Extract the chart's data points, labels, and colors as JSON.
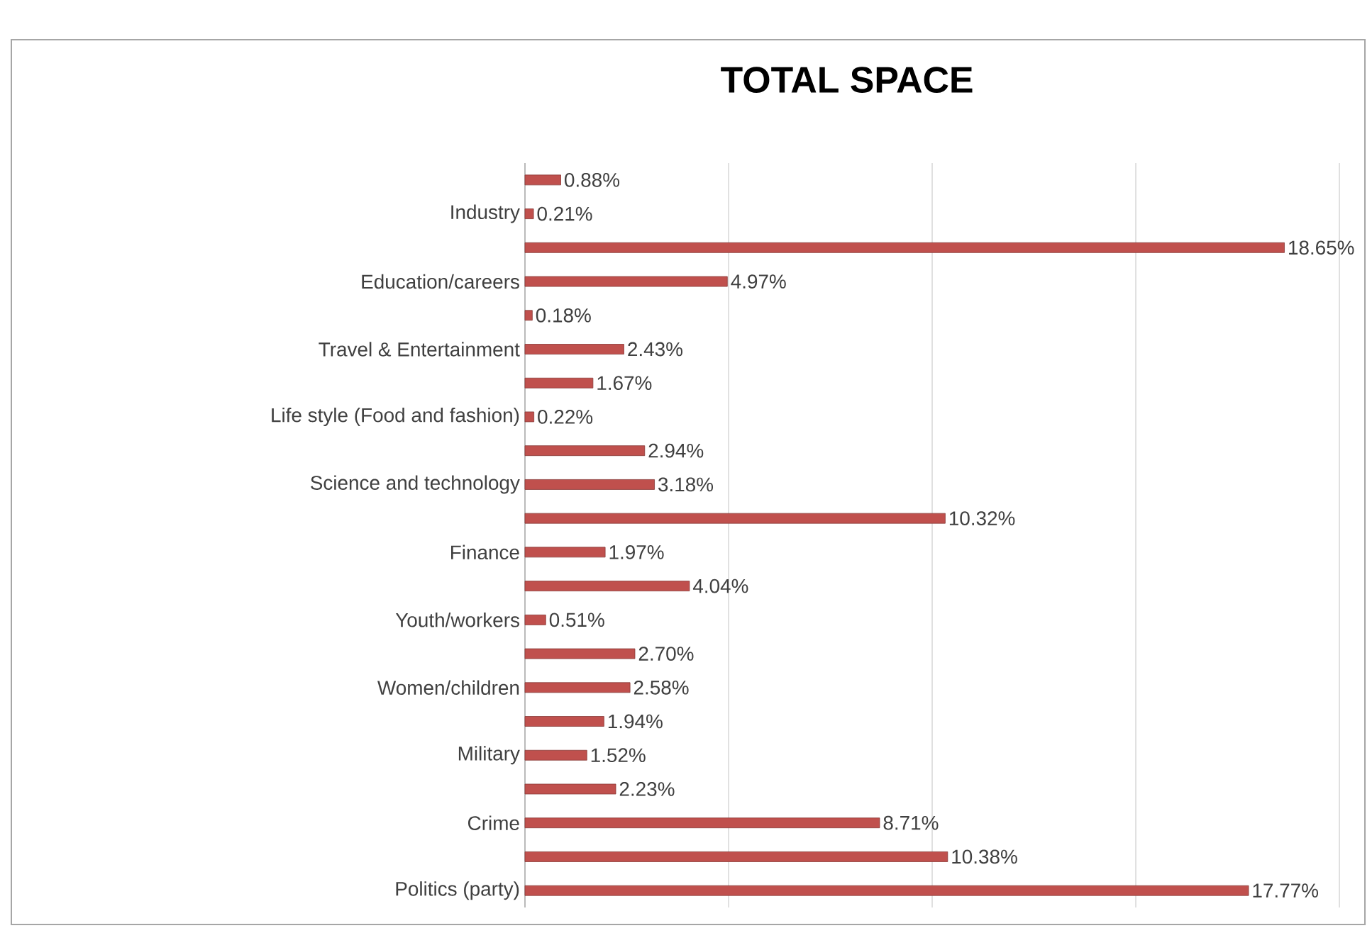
{
  "chart_data": {
    "type": "bar",
    "orientation": "horizontal",
    "title": "TOTAL SPACE",
    "categories": [
      null,
      "Industry",
      null,
      "Education/careers",
      null,
      "Travel & Entertainment",
      null,
      "Life style (Food and fashion)",
      null,
      "Science and technology",
      null,
      "Finance",
      null,
      "Youth/workers",
      null,
      "Women/children",
      null,
      "Military",
      null,
      "Crime",
      null,
      "Politics (party)"
    ],
    "values": [
      0.88,
      0.21,
      18.65,
      4.97,
      0.18,
      2.43,
      1.67,
      0.22,
      2.94,
      3.18,
      10.32,
      1.97,
      4.04,
      0.51,
      2.7,
      2.58,
      1.94,
      1.52,
      2.23,
      8.71,
      10.38,
      17.77
    ],
    "value_labels": [
      "0.88%",
      "0.21%",
      "18.65%",
      "4.97%",
      "0.18%",
      "2.43%",
      "1.67%",
      "0.22%",
      "2.94%",
      "3.18%",
      "10.32%",
      "1.97%",
      "4.04%",
      "0.51%",
      "2.70%",
      "2.58%",
      "1.94%",
      "1.52%",
      "2.23%",
      "8.71%",
      "10.38%",
      "17.77%"
    ],
    "color": "#c0504d",
    "xlim": [
      0,
      20
    ],
    "xticks": [
      {
        "value": 0,
        "label": null
      },
      {
        "value": 5,
        "label": null
      },
      {
        "value": 10,
        "label": null
      },
      {
        "value": 15,
        "label": null
      },
      {
        "value": 20,
        "label": null
      }
    ],
    "grid": "x",
    "tick_labels": "y"
  }
}
